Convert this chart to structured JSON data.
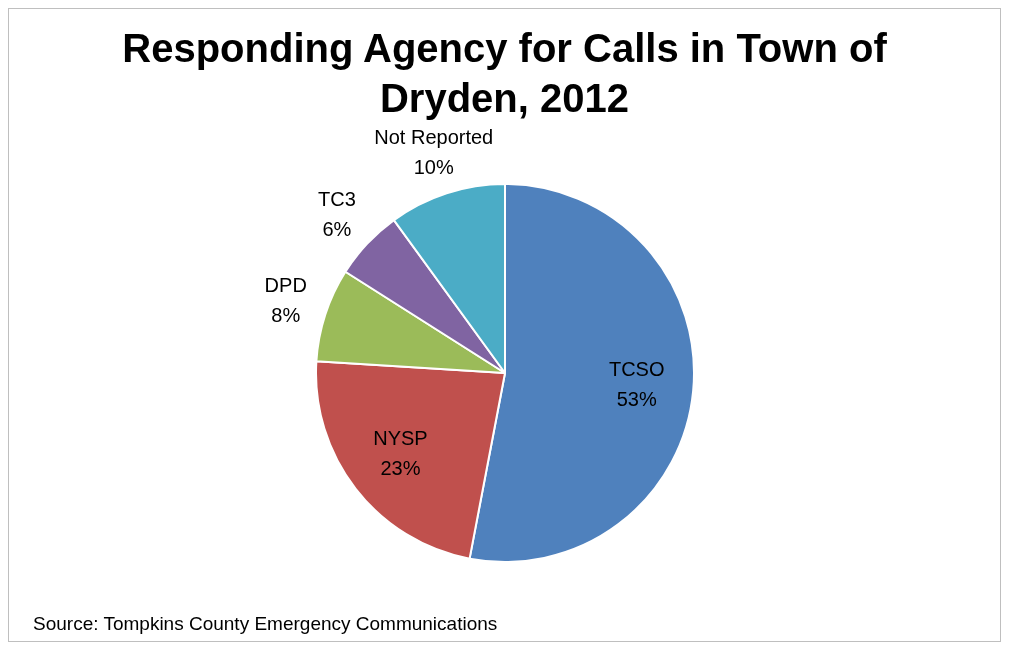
{
  "chart_data": {
    "type": "pie",
    "title": "Responding Agency for Calls in Town of Dryden, 2012",
    "categories": [
      "TCSO",
      "NYSP",
      "DPD",
      "TC3",
      "Not Reported"
    ],
    "values": [
      53,
      23,
      8,
      6,
      10
    ],
    "value_labels": [
      "53%",
      "23%",
      "8%",
      "6%",
      "10%"
    ],
    "colors": [
      "#4f81bd",
      "#c0504d",
      "#9bbb59",
      "#8064a2",
      "#4bacc6"
    ],
    "legend": false,
    "annotations": [
      "Source: Tompkins County Emergency Communications"
    ]
  }
}
